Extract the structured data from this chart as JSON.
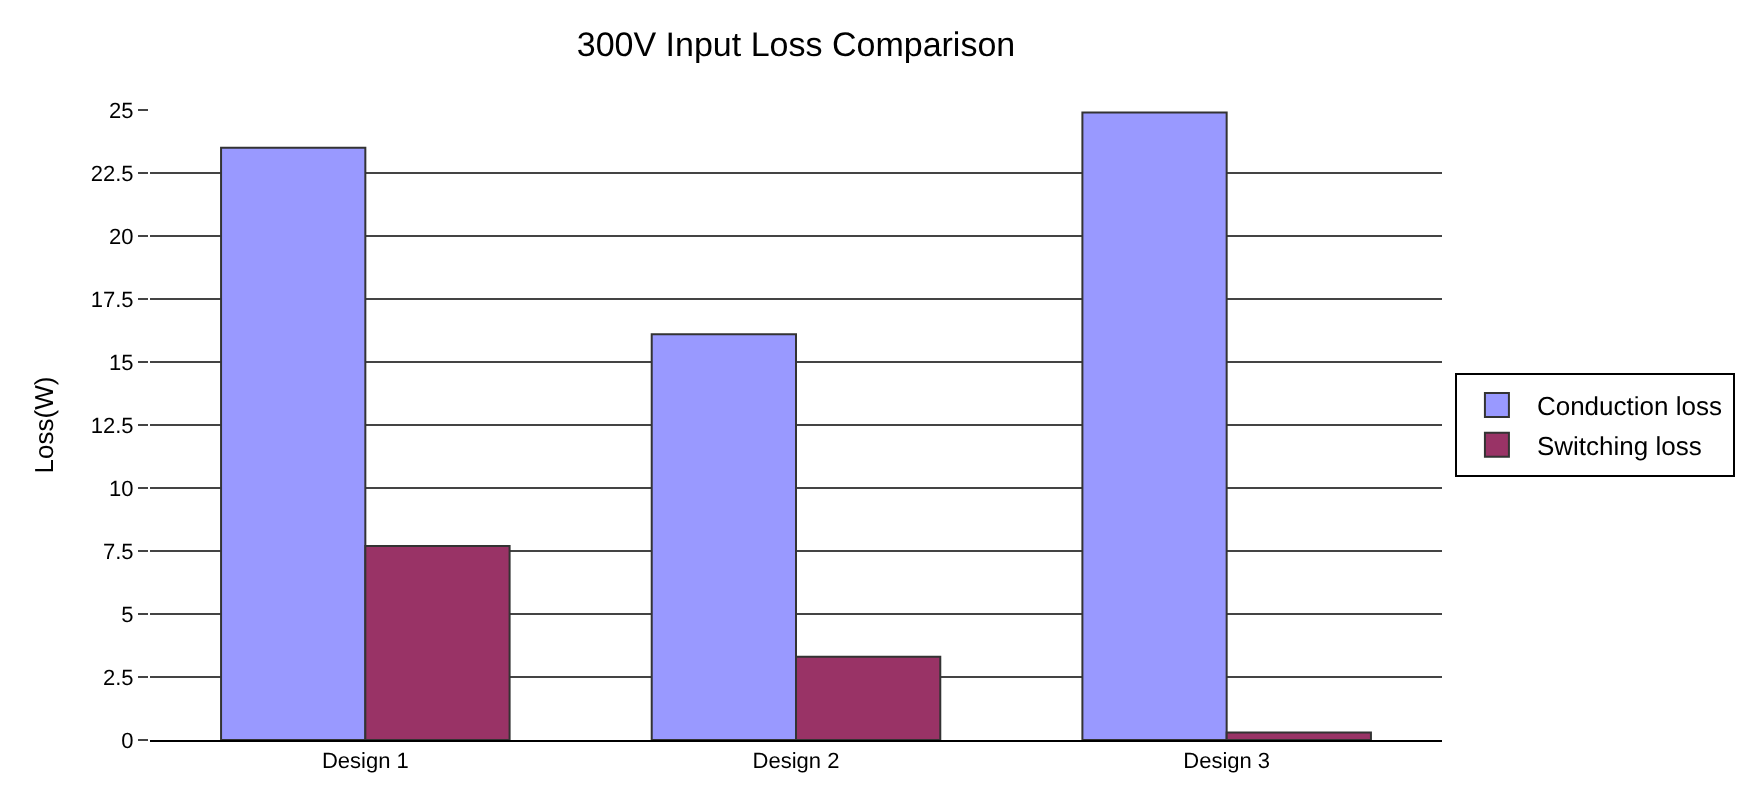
{
  "chart_data": {
    "type": "bar",
    "title": "300V Input Loss Comparison",
    "ylabel": "Loss(W)",
    "categories": [
      "Design 1",
      "Design 2",
      "Design 3"
    ],
    "series": [
      {
        "name": "Conduction loss",
        "color": "#9999ff",
        "values": [
          23.5,
          16.1,
          24.9
        ]
      },
      {
        "name": "Switching loss",
        "color": "#993366",
        "values": [
          7.7,
          3.3,
          0.3
        ]
      }
    ],
    "ylim": [
      0,
      25
    ],
    "yticks": [
      0,
      2.5,
      5,
      7.5,
      10,
      12.5,
      15,
      17.5,
      20,
      22.5,
      25
    ],
    "grid": "y",
    "legend": "right"
  }
}
